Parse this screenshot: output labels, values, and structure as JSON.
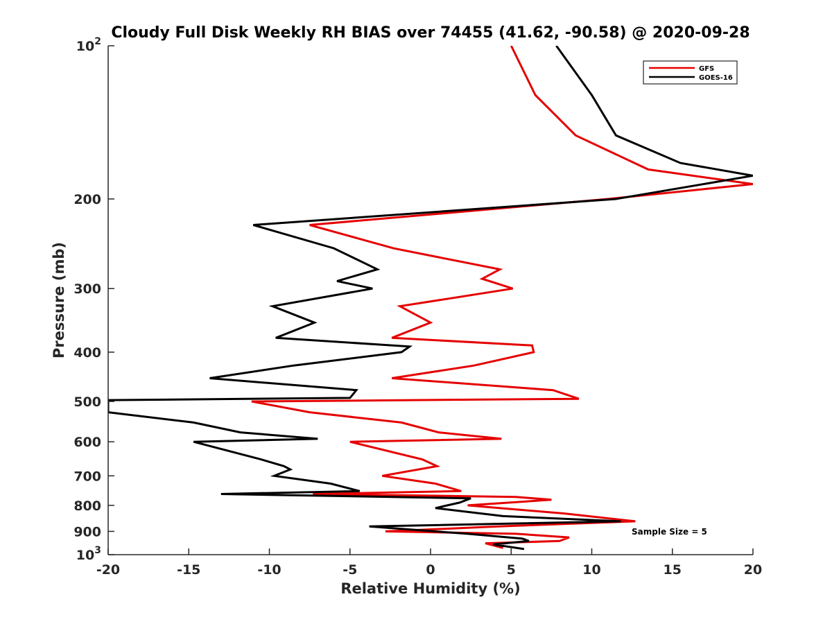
{
  "chart_data": {
    "type": "line",
    "title": "Cloudy Full Disk Weekly RH BIAS over 74455 (41.62, -90.58) @ 2020-09-28",
    "xlabel": "Relative Humidity (%)",
    "ylabel": "Pressure (mb)",
    "xlim": [
      -20,
      20
    ],
    "ylim": [
      100,
      1000
    ],
    "y_scale": "log",
    "y_reversed": true,
    "grid": false,
    "legend_position": "top-right",
    "x_ticks": [
      -20,
      -15,
      -10,
      -5,
      0,
      5,
      10,
      15,
      20
    ],
    "x_tick_labels": [
      "-20",
      "-15",
      "-10",
      "-5",
      "0",
      "5",
      "10",
      "15",
      "20"
    ],
    "y_ticks": [
      {
        "value": 100,
        "base": "10",
        "exp": "2",
        "text": ""
      },
      {
        "value": 200,
        "base": "",
        "exp": "",
        "text": "200"
      },
      {
        "value": 300,
        "base": "",
        "exp": "",
        "text": "300"
      },
      {
        "value": 400,
        "base": "",
        "exp": "",
        "text": "400"
      },
      {
        "value": 500,
        "base": "",
        "exp": "",
        "text": "500"
      },
      {
        "value": 600,
        "base": "",
        "exp": "",
        "text": "600"
      },
      {
        "value": 700,
        "base": "",
        "exp": "",
        "text": "700"
      },
      {
        "value": 800,
        "base": "",
        "exp": "",
        "text": "800"
      },
      {
        "value": 900,
        "base": "",
        "exp": "",
        "text": "900"
      },
      {
        "value": 1000,
        "base": "10",
        "exp": "3",
        "text": ""
      }
    ],
    "annotation": "Sample Size = 5",
    "series": [
      {
        "name": "GFS",
        "color": "#e50000",
        "points": [
          [
            5.0,
            100
          ],
          [
            6.5,
            125
          ],
          [
            9.0,
            150
          ],
          [
            13.5,
            175
          ],
          [
            20.0,
            187
          ],
          [
            11.0,
            200
          ],
          [
            -7.5,
            225
          ],
          [
            -2.3,
            250
          ],
          [
            4.3,
            275
          ],
          [
            3.2,
            287
          ],
          [
            5.1,
            300
          ],
          [
            -1.9,
            325
          ],
          [
            0.0,
            350
          ],
          [
            -2.4,
            375
          ],
          [
            6.3,
            388
          ],
          [
            6.4,
            400
          ],
          [
            2.7,
            425
          ],
          [
            -2.4,
            450
          ],
          [
            7.6,
            475
          ],
          [
            9.2,
            494
          ],
          [
            -11.1,
            500
          ],
          [
            -7.5,
            525
          ],
          [
            -1.8,
            550
          ],
          [
            0.5,
            575
          ],
          [
            4.4,
            592
          ],
          [
            -5.0,
            600
          ],
          [
            -0.5,
            650
          ],
          [
            0.4,
            670
          ],
          [
            -3.0,
            700
          ],
          [
            0.3,
            725
          ],
          [
            1.9,
            750
          ],
          [
            -7.3,
            760
          ],
          [
            5.3,
            770
          ],
          [
            7.5,
            780
          ],
          [
            2.3,
            800
          ],
          [
            8.3,
            830
          ],
          [
            12.7,
            860
          ],
          [
            4.2,
            880
          ],
          [
            -2.8,
            900
          ],
          [
            5.3,
            910
          ],
          [
            8.6,
            925
          ],
          [
            8.0,
            940
          ],
          [
            3.4,
            950
          ],
          [
            4.5,
            970
          ]
        ]
      },
      {
        "name": "GOES-16",
        "color": "#000000",
        "points": [
          [
            7.8,
            100
          ],
          [
            10.0,
            125
          ],
          [
            11.5,
            150
          ],
          [
            15.5,
            170
          ],
          [
            20.0,
            180
          ],
          [
            11.5,
            200
          ],
          [
            -11.0,
            225
          ],
          [
            -6.0,
            250
          ],
          [
            -3.3,
            275
          ],
          [
            -5.8,
            290
          ],
          [
            -3.6,
            300
          ],
          [
            -9.8,
            325
          ],
          [
            -7.2,
            350
          ],
          [
            -9.6,
            375
          ],
          [
            -1.3,
            390
          ],
          [
            -1.8,
            400
          ],
          [
            -8.5,
            425
          ],
          [
            -13.7,
            450
          ],
          [
            -4.6,
            475
          ],
          [
            -5.0,
            492
          ],
          [
            -20.0,
            497
          ],
          [
            -20.0,
            525
          ],
          [
            -14.7,
            550
          ],
          [
            -11.8,
            575
          ],
          [
            -7.0,
            592
          ],
          [
            -14.7,
            600
          ],
          [
            -10.5,
            650
          ],
          [
            -9.1,
            670
          ],
          [
            -8.7,
            680
          ],
          [
            -9.7,
            700
          ],
          [
            -6.2,
            725
          ],
          [
            -4.4,
            750
          ],
          [
            -13.0,
            760
          ],
          [
            2.5,
            775
          ],
          [
            1.8,
            790
          ],
          [
            0.3,
            810
          ],
          [
            4.5,
            840
          ],
          [
            11.8,
            860
          ],
          [
            -3.8,
            880
          ],
          [
            2.3,
            910
          ],
          [
            5.7,
            930
          ],
          [
            6.1,
            940
          ],
          [
            3.9,
            955
          ],
          [
            5.8,
            975
          ]
        ]
      }
    ]
  }
}
